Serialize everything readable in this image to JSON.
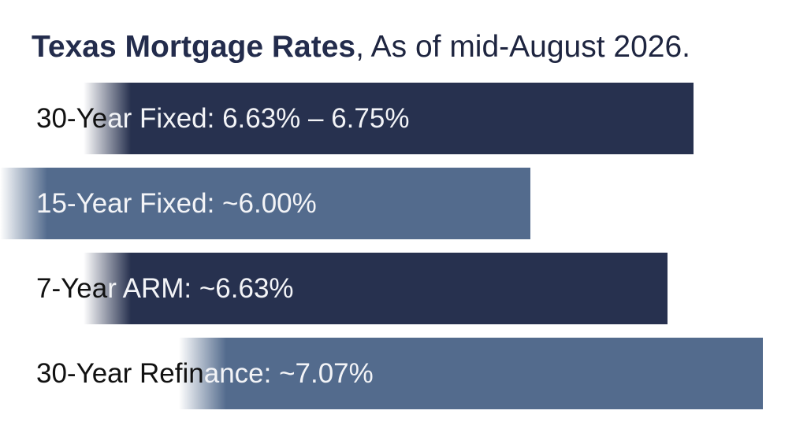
{
  "title": {
    "bold": "Texas Mortgage Rates",
    "rest": ", As of mid-August 2026."
  },
  "colors": {
    "dark_bar": "#27314f",
    "light_bar": "#536b8d",
    "title": "#232c4c"
  },
  "chart_data": {
    "type": "bar",
    "orientation": "horizontal",
    "categories": [
      "30-Year Fixed",
      "15-Year Fixed",
      "7-Year ARM",
      "30-Year Refinance"
    ],
    "labels": [
      "30-Year Fixed: 6.63% – 6.75%",
      "15-Year Fixed: ~6.00%",
      "7-Year ARM: ~6.63%",
      "30-Year Refinance: ~7.07%"
    ],
    "ranges": [
      [
        6.63,
        6.75
      ],
      [
        6.0,
        6.0
      ],
      [
        6.63,
        6.63
      ],
      [
        7.07,
        7.07
      ]
    ],
    "bar_colors": [
      "#27314f",
      "#536b8d",
      "#27314f",
      "#536b8d"
    ],
    "xlim": [
      3.7,
      7.15
    ],
    "grid": false,
    "legend": "none"
  }
}
